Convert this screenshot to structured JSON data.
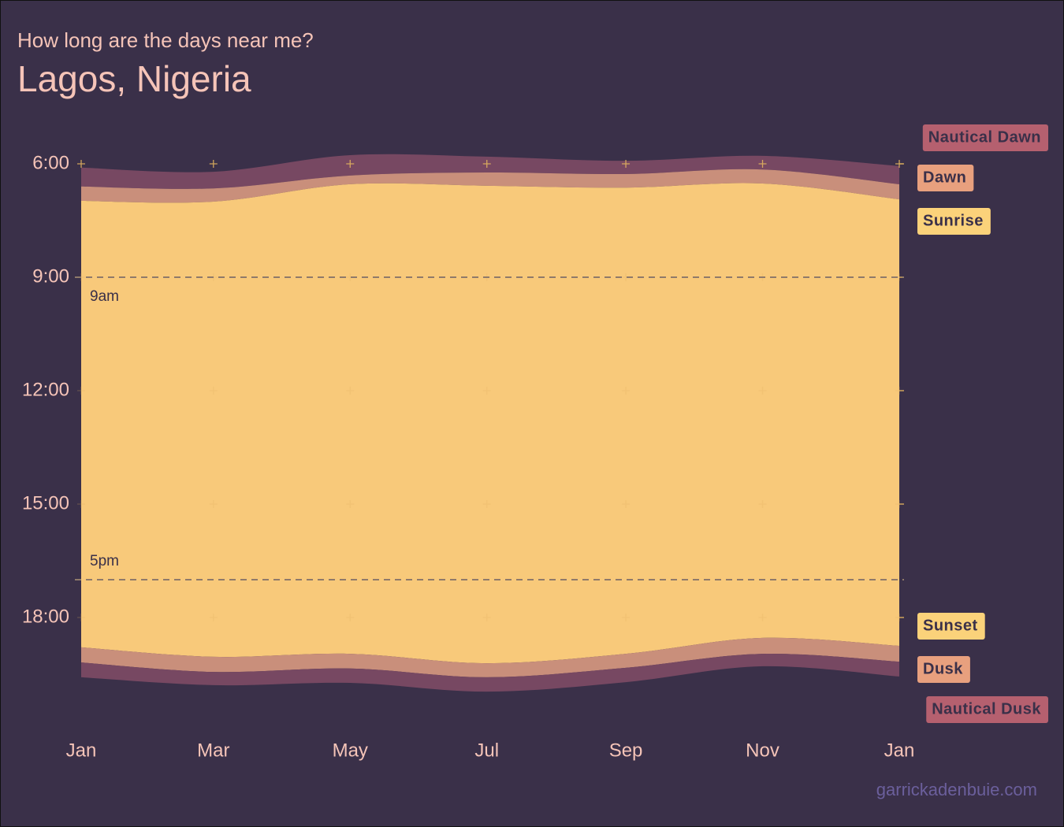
{
  "chart_data": {
    "type": "ribbon",
    "subtitle": "How long are the days near me?",
    "title": "Lagos, Nigeria",
    "caption": "garrickadenbuie.com",
    "x": [
      1,
      60,
      121,
      182,
      244,
      305,
      366
    ],
    "xlim": [
      1,
      366
    ],
    "xticks": [
      {
        "value": 1,
        "label": "Jan"
      },
      {
        "value": 60,
        "label": "Mar"
      },
      {
        "value": 121,
        "label": "May"
      },
      {
        "value": 182,
        "label": "Jul"
      },
      {
        "value": 244,
        "label": "Sep"
      },
      {
        "value": 305,
        "label": "Nov"
      },
      {
        "value": 366,
        "label": "Jan"
      }
    ],
    "ylim": [
      5.6,
      20.6
    ],
    "y_inverted": true,
    "yticks": [
      {
        "value": 6,
        "label": "6:00"
      },
      {
        "value": 9,
        "label": "9:00"
      },
      {
        "value": 12,
        "label": "12:00"
      },
      {
        "value": 15,
        "label": "15:00"
      },
      {
        "value": 18,
        "label": "18:00"
      }
    ],
    "grid": true,
    "series": [
      {
        "name": "Nautical Dawn",
        "color": "#b5606f",
        "values": [
          6.1,
          6.21,
          5.77,
          5.81,
          5.92,
          5.79,
          6.06
        ]
      },
      {
        "name": "Dawn",
        "color": "#e8a07e",
        "values": [
          6.6,
          6.65,
          6.31,
          6.23,
          6.27,
          6.15,
          6.54
        ]
      },
      {
        "name": "Sunrise",
        "color": "#fbd27a",
        "values": [
          6.98,
          7.0,
          6.54,
          6.58,
          6.63,
          6.52,
          6.94
        ]
      },
      {
        "name": "Sunset",
        "color": "#fbd27a",
        "values": [
          18.79,
          19.04,
          18.96,
          19.21,
          18.96,
          18.54,
          18.75
        ]
      },
      {
        "name": "Dusk",
        "color": "#e8a07e",
        "values": [
          19.19,
          19.44,
          19.35,
          19.58,
          19.33,
          18.96,
          19.17
        ]
      },
      {
        "name": "Nautical Dusk",
        "color": "#b5606f",
        "values": [
          19.58,
          19.79,
          19.73,
          19.96,
          19.71,
          19.29,
          19.56
        ]
      }
    ],
    "band_colors": [
      "#774862",
      "#c98f7b",
      "#f8c97a",
      "#c98f7b",
      "#774862"
    ],
    "annotations": [
      {
        "label": "9am",
        "value": 9
      },
      {
        "label": "5pm",
        "value": 17
      }
    ]
  }
}
